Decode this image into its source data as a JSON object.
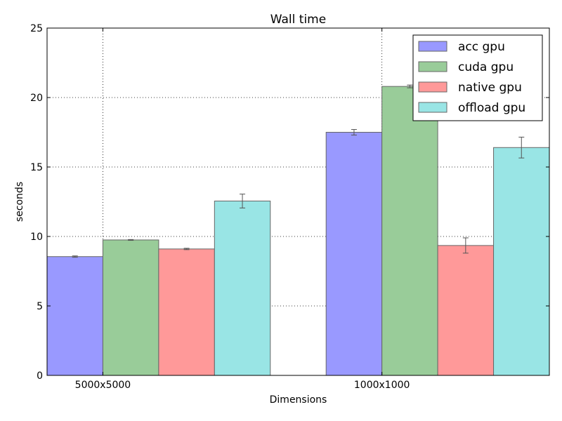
{
  "chart_data": {
    "type": "bar",
    "title": "Wall time",
    "xlabel": "Dimensions",
    "ylabel": "seconds",
    "ylim": [
      0,
      25
    ],
    "yticks": [
      0,
      5,
      10,
      15,
      20,
      25
    ],
    "categories": [
      "5000x5000",
      "1000x1000"
    ],
    "grid": true,
    "legend_position": "top-right",
    "series": [
      {
        "name": "acc gpu",
        "color": "#9999ff",
        "values": [
          8.55,
          17.5
        ],
        "errors": [
          0.05,
          0.2
        ]
      },
      {
        "name": "cuda gpu",
        "color": "#99cc99",
        "values": [
          9.75,
          20.8
        ],
        "errors": [
          0.03,
          0.1
        ]
      },
      {
        "name": "native gpu",
        "color": "#ff9999",
        "values": [
          9.1,
          9.35
        ],
        "errors": [
          0.05,
          0.55
        ]
      },
      {
        "name": "offload gpu",
        "color": "#99e5e5",
        "values": [
          12.55,
          16.4
        ],
        "errors": [
          0.5,
          0.75
        ]
      }
    ]
  }
}
